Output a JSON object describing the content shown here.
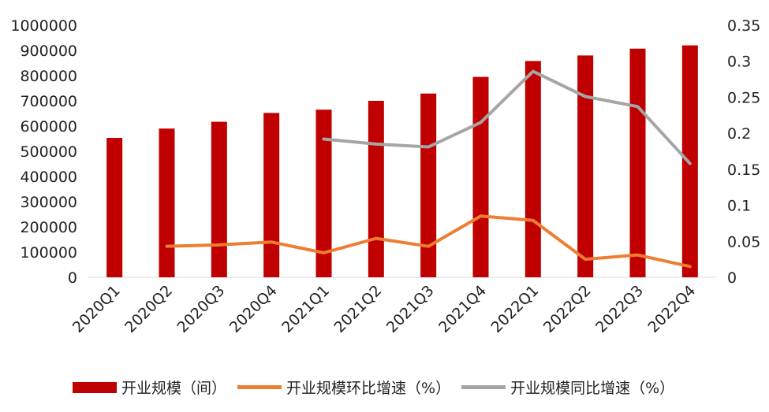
{
  "chart_data": {
    "type": "bar+line",
    "categories": [
      "2020Q1",
      "2020Q2",
      "2020Q3",
      "2020Q4",
      "2021Q1",
      "2021Q2",
      "2021Q3",
      "2021Q4",
      "2022Q1",
      "2022Q2",
      "2022Q3",
      "2022Q4"
    ],
    "series": [
      {
        "name": "开业规模（间）",
        "type": "bar",
        "axis": "left",
        "color": "#c00000",
        "values": [
          553000,
          590000,
          617000,
          652000,
          665000,
          700000,
          729000,
          795000,
          858000,
          880000,
          907000,
          920000
        ]
      },
      {
        "name": "开业规模环比增速（%）",
        "type": "line",
        "axis": "right",
        "color": "#ed7d31",
        "values": [
          null,
          0.043,
          0.045,
          0.049,
          0.034,
          0.054,
          0.043,
          0.085,
          0.079,
          0.025,
          0.031,
          0.015
        ]
      },
      {
        "name": "开业规模同比增速（%）",
        "type": "line",
        "axis": "right",
        "color": "#a5a5a5",
        "values": [
          null,
          null,
          null,
          null,
          0.192,
          0.185,
          0.181,
          0.215,
          0.286,
          0.251,
          0.237,
          0.158
        ]
      }
    ],
    "left_axis": {
      "min": 0,
      "max": 1000000,
      "ticks": [
        "0",
        "100000",
        "200000",
        "300000",
        "400000",
        "500000",
        "600000",
        "700000",
        "800000",
        "900000",
        "1000000"
      ]
    },
    "right_axis": {
      "min": 0,
      "max": 0.35,
      "ticks": [
        "0",
        "0.05",
        "0.1",
        "0.15",
        "0.2",
        "0.25",
        "0.3",
        "0.35"
      ]
    },
    "grid": false,
    "legend_position": "bottom"
  }
}
